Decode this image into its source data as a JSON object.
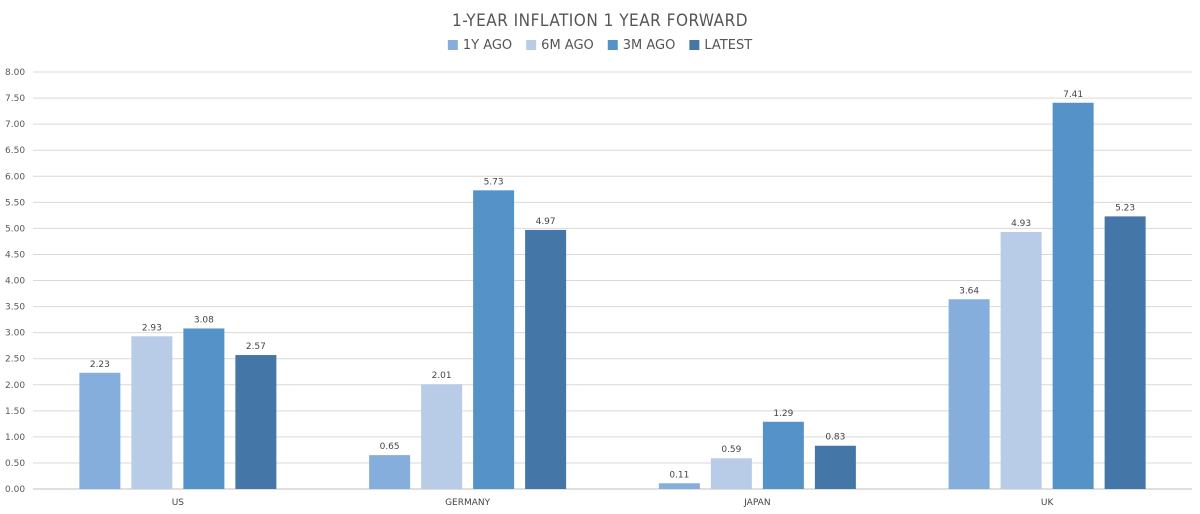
{
  "chart_data": {
    "type": "bar",
    "title": "1-YEAR INFLATION 1 YEAR FORWARD",
    "categories": [
      "US",
      "GERMANY",
      "JAPAN",
      "UK"
    ],
    "series": [
      {
        "name": "1Y AGO",
        "color": "#85AEDC",
        "values": [
          2.23,
          0.65,
          0.11,
          3.64
        ]
      },
      {
        "name": "6M AGO",
        "color": "#B8CCE7",
        "values": [
          2.93,
          2.01,
          0.59,
          4.93
        ]
      },
      {
        "name": "3M AGO",
        "color": "#5592C8",
        "values": [
          3.08,
          5.73,
          1.29,
          7.41
        ]
      },
      {
        "name": "LATEST",
        "color": "#4477A8",
        "values": [
          2.57,
          4.97,
          0.83,
          5.23
        ]
      }
    ],
    "ylim": [
      0,
      8
    ],
    "ytick_step": 0.5,
    "ytick_decimals": 2,
    "grid": true,
    "legend_position": "top-center",
    "data_labels": true
  }
}
